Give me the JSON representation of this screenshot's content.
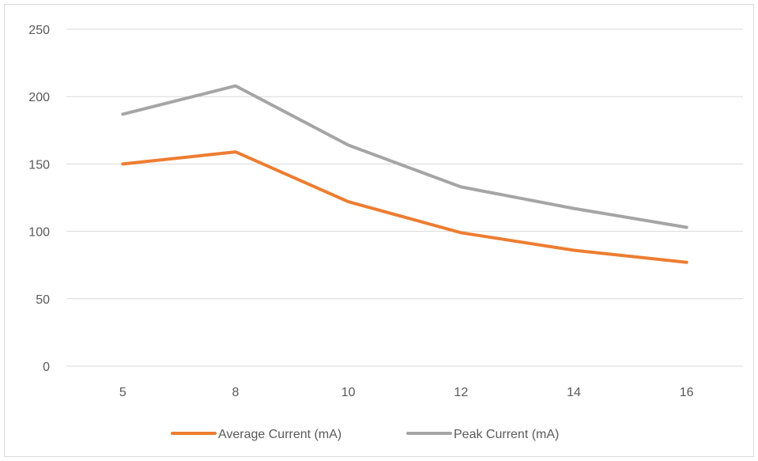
{
  "chart_data": {
    "type": "line",
    "title": "",
    "xlabel": "",
    "ylabel": "",
    "categories": [
      "5",
      "8",
      "10",
      "12",
      "14",
      "16"
    ],
    "ylim": [
      0,
      250
    ],
    "y_ticks": [
      "0",
      "50",
      "100",
      "150",
      "200",
      "250"
    ],
    "grid": "horizontal",
    "legend_position": "bottom",
    "series": [
      {
        "name": "Average Current (mA)",
        "values": [
          150,
          159,
          122,
          99,
          86,
          77
        ],
        "color": "#ED7D31"
      },
      {
        "name": "Peak Current (mA)",
        "values": [
          187,
          208,
          164,
          133,
          117,
          103
        ],
        "color": "#A5A5A5"
      }
    ]
  }
}
